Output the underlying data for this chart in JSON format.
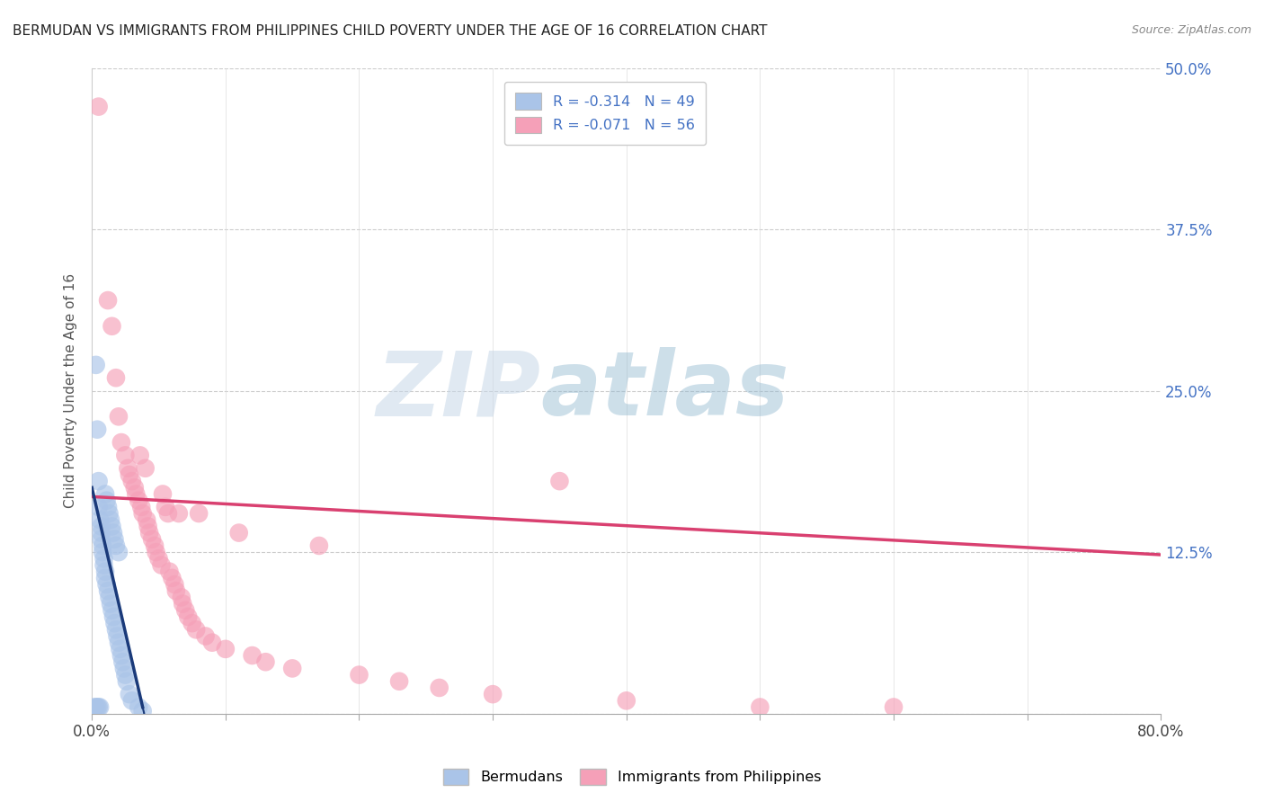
{
  "title": "BERMUDAN VS IMMIGRANTS FROM PHILIPPINES CHILD POVERTY UNDER THE AGE OF 16 CORRELATION CHART",
  "source": "Source: ZipAtlas.com",
  "ylabel": "Child Poverty Under the Age of 16",
  "xlim": [
    0.0,
    0.8
  ],
  "ylim": [
    0.0,
    0.5
  ],
  "ytick_vals": [
    0.0,
    0.125,
    0.25,
    0.375,
    0.5
  ],
  "ytick_labels_right": [
    "",
    "12.5%",
    "25.0%",
    "37.5%",
    "50.0%"
  ],
  "xtick_vals": [
    0.0,
    0.1,
    0.2,
    0.3,
    0.4,
    0.5,
    0.6,
    0.7,
    0.8
  ],
  "xtick_labels": [
    "0.0%",
    "",
    "",
    "",
    "",
    "",
    "",
    "",
    "80.0%"
  ],
  "blue_R": -0.314,
  "blue_N": 49,
  "pink_R": -0.071,
  "pink_N": 56,
  "blue_color": "#aac4e8",
  "blue_line_color": "#1a3a7a",
  "pink_color": "#f5a0b8",
  "pink_line_color": "#d94070",
  "blue_scatter_x": [
    0.002,
    0.003,
    0.003,
    0.004,
    0.004,
    0.005,
    0.005,
    0.005,
    0.006,
    0.006,
    0.007,
    0.007,
    0.007,
    0.008,
    0.008,
    0.009,
    0.009,
    0.01,
    0.01,
    0.01,
    0.011,
    0.011,
    0.012,
    0.012,
    0.013,
    0.013,
    0.014,
    0.014,
    0.015,
    0.015,
    0.016,
    0.016,
    0.017,
    0.017,
    0.018,
    0.018,
    0.019,
    0.02,
    0.02,
    0.021,
    0.022,
    0.023,
    0.024,
    0.025,
    0.026,
    0.028,
    0.03,
    0.035,
    0.038
  ],
  "blue_scatter_y": [
    0.005,
    0.005,
    0.27,
    0.005,
    0.22,
    0.005,
    0.18,
    0.16,
    0.005,
    0.15,
    0.145,
    0.14,
    0.135,
    0.13,
    0.125,
    0.12,
    0.115,
    0.11,
    0.105,
    0.17,
    0.1,
    0.165,
    0.095,
    0.16,
    0.09,
    0.155,
    0.085,
    0.15,
    0.08,
    0.145,
    0.075,
    0.14,
    0.07,
    0.135,
    0.065,
    0.13,
    0.06,
    0.055,
    0.125,
    0.05,
    0.045,
    0.04,
    0.035,
    0.03,
    0.025,
    0.015,
    0.01,
    0.005,
    0.002
  ],
  "pink_scatter_x": [
    0.005,
    0.012,
    0.015,
    0.018,
    0.02,
    0.022,
    0.025,
    0.027,
    0.028,
    0.03,
    0.032,
    0.033,
    0.035,
    0.036,
    0.037,
    0.038,
    0.04,
    0.041,
    0.042,
    0.043,
    0.045,
    0.047,
    0.048,
    0.05,
    0.052,
    0.053,
    0.055,
    0.057,
    0.058,
    0.06,
    0.062,
    0.063,
    0.065,
    0.067,
    0.068,
    0.07,
    0.072,
    0.075,
    0.078,
    0.08,
    0.085,
    0.09,
    0.1,
    0.11,
    0.12,
    0.13,
    0.15,
    0.17,
    0.2,
    0.23,
    0.26,
    0.3,
    0.35,
    0.4,
    0.5,
    0.6
  ],
  "pink_scatter_y": [
    0.47,
    0.32,
    0.3,
    0.26,
    0.23,
    0.21,
    0.2,
    0.19,
    0.185,
    0.18,
    0.175,
    0.17,
    0.165,
    0.2,
    0.16,
    0.155,
    0.19,
    0.15,
    0.145,
    0.14,
    0.135,
    0.13,
    0.125,
    0.12,
    0.115,
    0.17,
    0.16,
    0.155,
    0.11,
    0.105,
    0.1,
    0.095,
    0.155,
    0.09,
    0.085,
    0.08,
    0.075,
    0.07,
    0.065,
    0.155,
    0.06,
    0.055,
    0.05,
    0.14,
    0.045,
    0.04,
    0.035,
    0.13,
    0.03,
    0.025,
    0.02,
    0.015,
    0.18,
    0.01,
    0.005,
    0.005
  ],
  "blue_line_x0": 0.0,
  "blue_line_y0": 0.175,
  "blue_line_x1": 0.038,
  "blue_line_y1": 0.005,
  "blue_line_solid_end": 0.038,
  "blue_line_dashed_end": 0.12,
  "pink_line_x0": 0.0,
  "pink_line_y0": 0.168,
  "pink_line_x1": 0.8,
  "pink_line_y1": 0.123,
  "watermark_zip": "ZIP",
  "watermark_atlas": "atlas",
  "background_color": "#ffffff",
  "grid_color": "#cccccc",
  "label_color": "#4472c4",
  "tick_color": "#888888"
}
